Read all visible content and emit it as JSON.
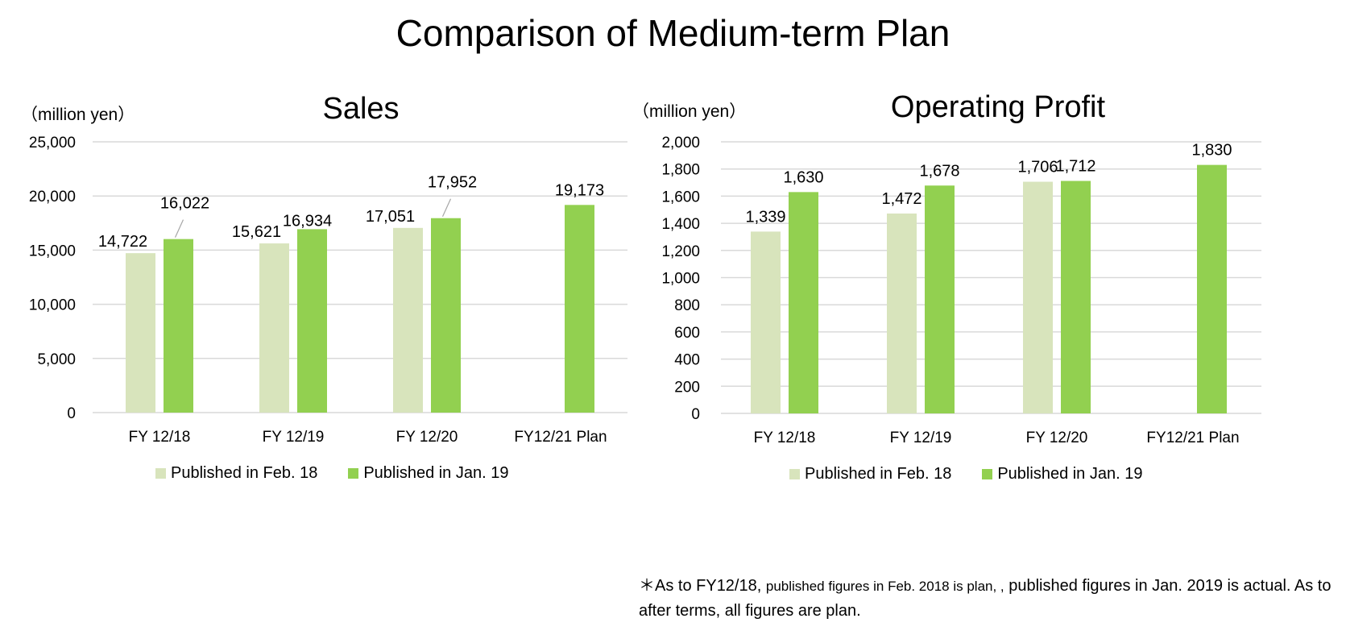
{
  "title": "Comparison of Medium-term Plan",
  "colors": {
    "published_feb18": "#d8e4bc",
    "published_jan19": "#92d050",
    "grid": "#d9d9d9",
    "connector": "#a6a6a6"
  },
  "chart_data": [
    {
      "type": "bar",
      "title": "Sales",
      "ylabel": "（million yen）",
      "categories": [
        "FY 12/18",
        "FY 12/19",
        "FY 12/20",
        "FY12/21 Plan"
      ],
      "series": [
        {
          "name": "Published in Feb. 18",
          "values": [
            14722,
            15621,
            17051,
            null
          ]
        },
        {
          "name": "Published in Jan. 19",
          "values": [
            16022,
            16934,
            17952,
            19173
          ]
        }
      ],
      "data_labels": [
        [
          "14,722",
          "15,621",
          "17,051",
          ""
        ],
        [
          "16,022",
          "16,934",
          "17,952",
          "19,173"
        ]
      ],
      "ylim": [
        0,
        25000
      ],
      "yticks": [
        0,
        5000,
        10000,
        15000,
        20000,
        25000
      ],
      "ytick_labels": [
        "0",
        "5,000",
        "10,000",
        "15,000",
        "20,000",
        "25,000"
      ],
      "grid": true,
      "legend": "bottom"
    },
    {
      "type": "bar",
      "title": "Operating Profit",
      "ylabel": "（million yen）",
      "categories": [
        "FY 12/18",
        "FY 12/19",
        "FY 12/20",
        "FY12/21 Plan"
      ],
      "series": [
        {
          "name": "Published in Feb. 18",
          "values": [
            1339,
            1472,
            1706,
            null
          ]
        },
        {
          "name": "Published in Jan. 19",
          "values": [
            1630,
            1678,
            1712,
            1830
          ]
        }
      ],
      "data_labels": [
        [
          "1,339",
          "1,472",
          "1,706",
          ""
        ],
        [
          "1,630",
          "1,678",
          "1,712",
          "1,830"
        ]
      ],
      "ylim": [
        0,
        2000
      ],
      "yticks": [
        0,
        200,
        400,
        600,
        800,
        1000,
        1200,
        1400,
        1600,
        1800,
        2000
      ],
      "ytick_labels": [
        "0",
        "200",
        "400",
        "600",
        "800",
        "1,000",
        "1,200",
        "1,400",
        "1,600",
        "1,800",
        "2,000"
      ],
      "grid": true,
      "legend": "bottom"
    }
  ],
  "footnote": {
    "part1": "＊As to FY12/18, ",
    "part2": "published figures in Feb. 2018 is plan, ,",
    "part3": " published figures in Jan. 2019 is actual. As to after terms, all figures are plan."
  }
}
